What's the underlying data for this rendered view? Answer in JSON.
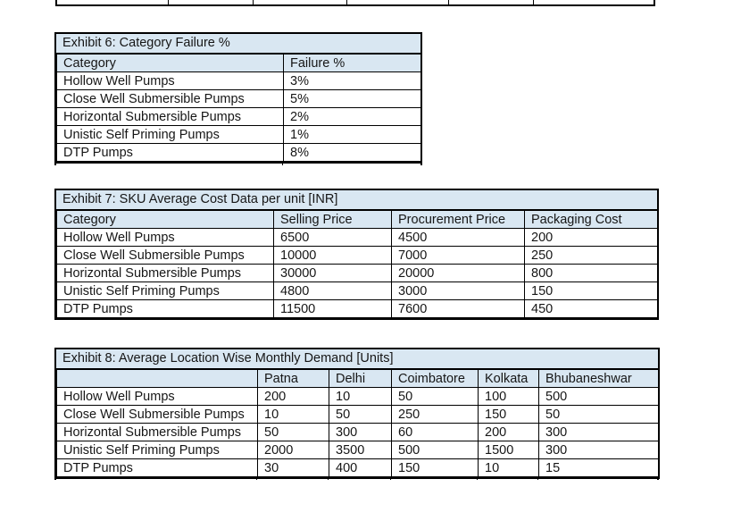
{
  "colors": {
    "header_fill": "#D9E7F2",
    "border": "#000000",
    "text": "#161616",
    "page_bg": "#ffffff"
  },
  "exhibit6": {
    "title": "Exhibit 6: Category Failure %",
    "columns": [
      "Category",
      "Failure %"
    ],
    "rows": [
      [
        "Hollow Well Pumps",
        "3%"
      ],
      [
        "Close Well Submersible Pumps",
        "5%"
      ],
      [
        "Horizontal Submersible Pumps",
        "2%"
      ],
      [
        "Unistic Self Priming Pumps",
        "1%"
      ],
      [
        "DTP Pumps",
        "8%"
      ]
    ]
  },
  "exhibit7": {
    "title": "Exhibit 7: SKU Average Cost Data per unit [INR]",
    "columns": [
      "Category",
      "Selling Price",
      "Procurement Price",
      "Packaging Cost"
    ],
    "rows": [
      [
        "Hollow Well Pumps",
        "6500",
        "4500",
        "200"
      ],
      [
        "Close Well Submersible Pumps",
        "10000",
        "7000",
        "250"
      ],
      [
        "Horizontal Submersible Pumps",
        "30000",
        "20000",
        "800"
      ],
      [
        "Unistic Self Priming Pumps",
        "4800",
        "3000",
        "150"
      ],
      [
        "DTP Pumps",
        "11500",
        "7600",
        "450"
      ]
    ]
  },
  "exhibit8": {
    "title": "Exhibit 8: Average Location Wise Monthly Demand [Units]",
    "columns": [
      "",
      "Patna",
      "Delhi",
      "Coimbatore",
      "Kolkata",
      "Bhubaneshwar"
    ],
    "rows": [
      [
        "Hollow Well Pumps",
        "200",
        "10",
        "50",
        "100",
        "500"
      ],
      [
        "Close Well Submersible Pumps",
        "10",
        "50",
        "250",
        "150",
        "50"
      ],
      [
        "Horizontal Submersible Pumps",
        "50",
        "300",
        "60",
        "200",
        "300"
      ],
      [
        "Unistic Self Priming Pumps",
        "2000",
        "3500",
        "500",
        "1500",
        "300"
      ],
      [
        "DTP Pumps",
        "30",
        "400",
        "150",
        "10",
        "15"
      ]
    ]
  }
}
